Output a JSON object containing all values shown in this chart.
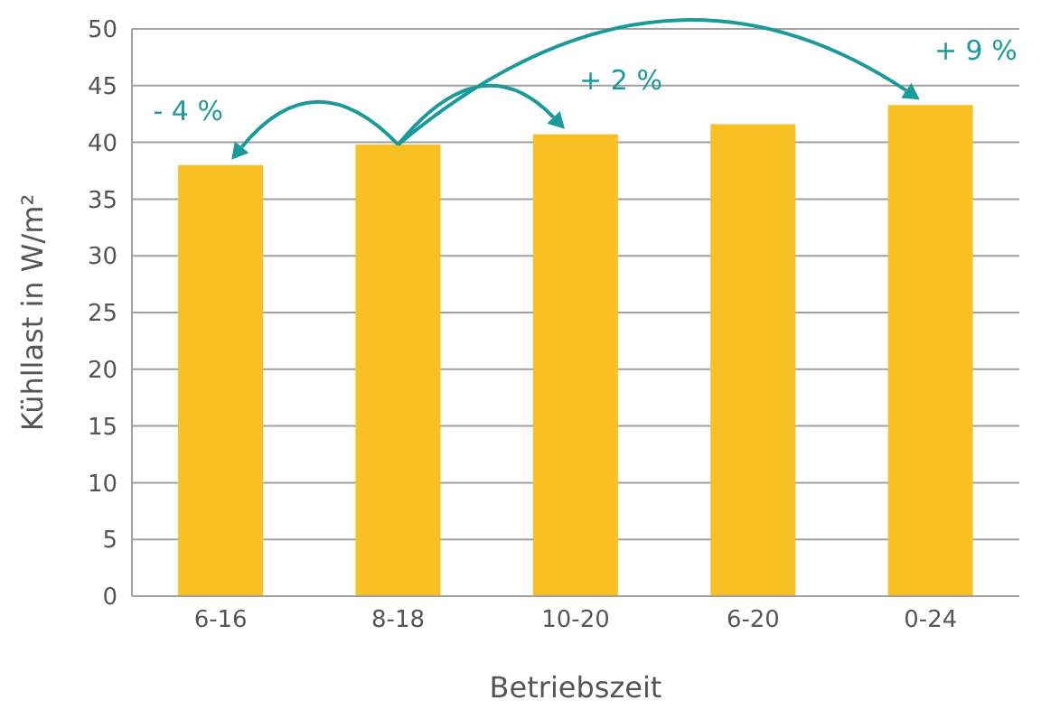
{
  "chart_data": {
    "type": "bar",
    "xlabel": "Betriebszeit",
    "ylabel": "Kühllast in W/m²",
    "categories": [
      "6-16",
      "8-18",
      "10-20",
      "6-20",
      "0-24"
    ],
    "values": [
      38.0,
      39.8,
      40.7,
      41.6,
      43.3
    ],
    "color": "#f8c023",
    "ylim": [
      0,
      50
    ],
    "yticks": [
      0,
      5,
      10,
      15,
      20,
      25,
      30,
      35,
      40,
      45,
      50
    ],
    "grid": "y",
    "annotations": [
      {
        "text": "- 4 %",
        "x": "6-16",
        "y": 38.0
      },
      {
        "text": "+ 2 %",
        "x": "10-20",
        "y": 40.7
      },
      {
        "text": "+ 9 %",
        "x": "0-24",
        "y": 43.3
      }
    ]
  }
}
